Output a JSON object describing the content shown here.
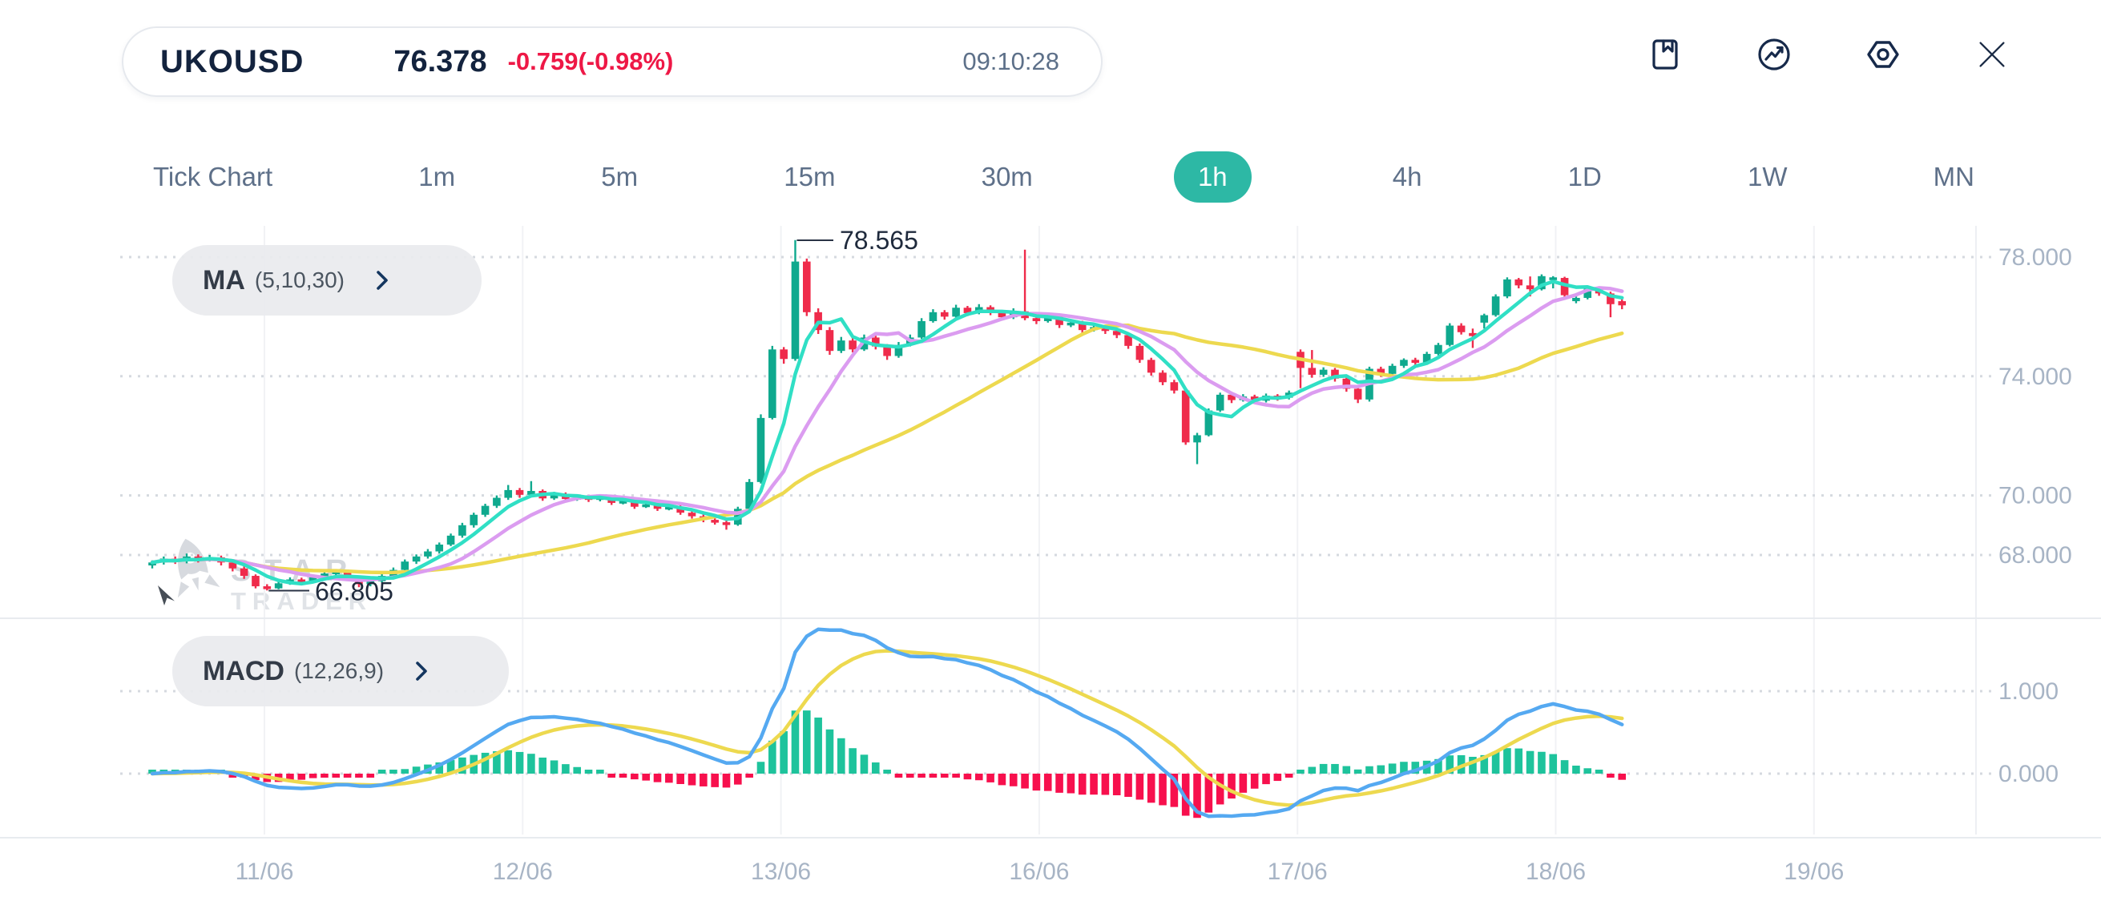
{
  "header": {
    "symbol": "UKOUSD",
    "price": "76.378",
    "change": "-0.759(-0.98%)",
    "time": "09:10:28",
    "icons": [
      "bookmark-icon",
      "performance-icon",
      "settings-icon",
      "close-icon"
    ]
  },
  "timeframes": {
    "items": [
      "Tick Chart",
      "1m",
      "5m",
      "15m",
      "30m",
      "1h",
      "4h",
      "1D",
      "1W",
      "MN"
    ],
    "active": "1h"
  },
  "indicators": {
    "ma": {
      "name": "MA",
      "params": "(5,10,30)"
    },
    "macd": {
      "name": "MACD",
      "params": "(12,26,9)"
    }
  },
  "watermark": {
    "line1": "STAR",
    "line2": "TRADER"
  },
  "colors": {
    "navy": "#13233e",
    "red": "#ee1846",
    "teal_active": "#2db8a5",
    "candle_up": "#0fa98e",
    "candle_down": "#ef2b4b",
    "ma5": "#30dfc5",
    "ma10": "#db9cf0",
    "ma30": "#edd94f",
    "macd_line": "#55a9f1",
    "signal_line": "#edd94f",
    "hist_up": "#1ec39c",
    "hist_down": "#f7104d",
    "grid_dotted": "#d5d9df",
    "grid_vertical": "#f1f2f5",
    "axis_label": "#a7b4c5",
    "annotation": "#1f2a3c",
    "separator": "#e8ebef"
  },
  "chart_data": {
    "type": "candlestick+macd",
    "timeframe": "1h",
    "x_labels": [
      "11/06",
      "12/06",
      "13/06",
      "16/06",
      "17/06",
      "18/06",
      "19/06"
    ],
    "price_ticks": {
      "values": [
        78,
        74,
        70,
        68
      ],
      "labels": [
        "78.000",
        "74.000",
        "70.000",
        "68.000"
      ]
    },
    "macd_ticks": {
      "values": [
        1,
        0
      ],
      "labels": [
        "1.000",
        "0.000"
      ]
    },
    "ma_periods": [
      5,
      10,
      30
    ],
    "macd_params": [
      12,
      26,
      9
    ],
    "annotations": {
      "high": {
        "value": 78.565,
        "label": "78.565",
        "candle": 56
      },
      "low": {
        "value": 66.805,
        "label": "66.805",
        "candle": 10
      }
    },
    "candles": [
      [
        67.65,
        67.82,
        67.55,
        67.75
      ],
      [
        67.75,
        67.95,
        67.68,
        67.88
      ],
      [
        67.88,
        67.95,
        67.7,
        67.8
      ],
      [
        67.8,
        68.05,
        67.72,
        67.95
      ],
      [
        67.95,
        68.02,
        67.75,
        67.85
      ],
      [
        67.85,
        68.0,
        67.78,
        67.92
      ],
      [
        67.92,
        67.98,
        67.65,
        67.75
      ],
      [
        67.75,
        67.82,
        67.45,
        67.55
      ],
      [
        67.55,
        67.62,
        67.2,
        67.3
      ],
      [
        67.3,
        67.35,
        66.88,
        66.95
      ],
      [
        66.95,
        67.02,
        66.81,
        66.88
      ],
      [
        66.88,
        67.12,
        66.85,
        67.05
      ],
      [
        67.05,
        67.25,
        67.0,
        67.18
      ],
      [
        67.18,
        67.24,
        67.05,
        67.12
      ],
      [
        67.12,
        67.32,
        67.08,
        67.25
      ],
      [
        67.25,
        67.45,
        67.2,
        67.38
      ],
      [
        67.38,
        67.52,
        67.3,
        67.45
      ],
      [
        67.45,
        67.5,
        67.15,
        67.22
      ],
      [
        67.22,
        67.28,
        66.92,
        67.02
      ],
      [
        67.02,
        67.22,
        66.95,
        67.12
      ],
      [
        67.12,
        67.38,
        67.08,
        67.3
      ],
      [
        67.3,
        67.58,
        67.25,
        67.5
      ],
      [
        67.5,
        67.85,
        67.45,
        67.78
      ],
      [
        67.78,
        68.02,
        67.7,
        67.95
      ],
      [
        67.95,
        68.2,
        67.88,
        68.12
      ],
      [
        68.12,
        68.42,
        68.05,
        68.35
      ],
      [
        68.35,
        68.72,
        68.3,
        68.65
      ],
      [
        68.65,
        69.08,
        68.58,
        69.0
      ],
      [
        69.0,
        69.42,
        68.92,
        69.35
      ],
      [
        69.35,
        69.72,
        69.28,
        69.65
      ],
      [
        69.65,
        70.0,
        69.58,
        69.92
      ],
      [
        69.92,
        70.35,
        69.85,
        70.18
      ],
      [
        70.18,
        70.25,
        69.92,
        70.02
      ],
      [
        70.02,
        70.48,
        69.95,
        70.15
      ],
      [
        70.15,
        70.2,
        69.82,
        69.9
      ],
      [
        69.9,
        70.12,
        69.85,
        70.05
      ],
      [
        70.05,
        70.1,
        69.8,
        69.88
      ],
      [
        69.88,
        70.02,
        69.82,
        69.95
      ],
      [
        69.95,
        70.0,
        69.78,
        69.85
      ],
      [
        69.85,
        70.02,
        69.8,
        69.95
      ],
      [
        69.95,
        70.0,
        69.68,
        69.75
      ],
      [
        69.75,
        69.9,
        69.7,
        69.82
      ],
      [
        69.82,
        69.88,
        69.55,
        69.62
      ],
      [
        69.62,
        69.78,
        69.58,
        69.7
      ],
      [
        69.7,
        69.75,
        69.48,
        69.55
      ],
      [
        69.55,
        69.7,
        69.5,
        69.62
      ],
      [
        69.62,
        69.68,
        69.35,
        69.42
      ],
      [
        69.42,
        69.5,
        69.22,
        69.3
      ],
      [
        69.3,
        69.38,
        69.1,
        69.18
      ],
      [
        69.18,
        69.25,
        69.02,
        69.1
      ],
      [
        69.1,
        69.15,
        68.85,
        69.02
      ],
      [
        69.02,
        69.62,
        68.98,
        69.55
      ],
      [
        69.55,
        70.55,
        69.5,
        70.45
      ],
      [
        70.45,
        72.72,
        70.4,
        72.6
      ],
      [
        72.6,
        75.02,
        72.55,
        74.9
      ],
      [
        74.9,
        74.98,
        74.42,
        74.58
      ],
      [
        74.58,
        78.57,
        74.52,
        77.85
      ],
      [
        77.85,
        77.95,
        76.02,
        76.15
      ],
      [
        76.15,
        76.28,
        75.42,
        75.55
      ],
      [
        75.55,
        75.65,
        74.72,
        74.85
      ],
      [
        74.85,
        75.32,
        74.78,
        75.2
      ],
      [
        75.2,
        75.28,
        74.8,
        74.9
      ],
      [
        74.9,
        75.4,
        74.85,
        75.3
      ],
      [
        75.3,
        75.36,
        74.9,
        75.0
      ],
      [
        75.0,
        75.08,
        74.55,
        74.68
      ],
      [
        74.68,
        75.15,
        74.62,
        75.05
      ],
      [
        75.05,
        75.4,
        75.0,
        75.3
      ],
      [
        75.3,
        75.95,
        75.25,
        75.85
      ],
      [
        75.85,
        76.25,
        75.8,
        76.15
      ],
      [
        76.15,
        76.22,
        75.9,
        76.0
      ],
      [
        76.0,
        76.4,
        75.95,
        76.3
      ],
      [
        76.3,
        76.36,
        76.02,
        76.12
      ],
      [
        76.12,
        76.42,
        76.08,
        76.32
      ],
      [
        76.32,
        76.38,
        76.05,
        76.15
      ],
      [
        76.15,
        76.22,
        75.88,
        75.98
      ],
      [
        75.98,
        76.28,
        75.92,
        76.18
      ],
      [
        76.18,
        78.25,
        75.88,
        75.95
      ],
      [
        75.95,
        76.05,
        75.75,
        75.85
      ],
      [
        75.85,
        76.12,
        75.8,
        76.02
      ],
      [
        76.02,
        76.08,
        75.62,
        75.72
      ],
      [
        75.72,
        75.9,
        75.65,
        75.8
      ],
      [
        75.8,
        75.86,
        75.45,
        75.55
      ],
      [
        75.55,
        75.75,
        75.5,
        75.65
      ],
      [
        75.65,
        75.72,
        75.42,
        75.52
      ],
      [
        75.52,
        75.58,
        75.28,
        75.38
      ],
      [
        75.38,
        75.45,
        74.92,
        75.02
      ],
      [
        75.02,
        75.1,
        74.45,
        74.55
      ],
      [
        74.55,
        74.62,
        74.02,
        74.12
      ],
      [
        74.12,
        74.2,
        73.7,
        73.8
      ],
      [
        73.8,
        73.88,
        73.42,
        73.52
      ],
      [
        73.52,
        73.58,
        71.7,
        71.78
      ],
      [
        71.78,
        72.1,
        71.05,
        72.02
      ],
      [
        72.02,
        72.92,
        71.98,
        72.85
      ],
      [
        72.85,
        73.45,
        72.8,
        73.38
      ],
      [
        73.38,
        73.44,
        73.1,
        73.2
      ],
      [
        73.2,
        73.4,
        73.15,
        73.32
      ],
      [
        73.32,
        73.38,
        73.08,
        73.18
      ],
      [
        73.18,
        73.42,
        73.12,
        73.35
      ],
      [
        73.35,
        73.4,
        73.18,
        73.28
      ],
      [
        73.28,
        73.52,
        73.22,
        73.45
      ],
      [
        74.82,
        74.9,
        73.6,
        74.28
      ],
      [
        74.28,
        74.88,
        73.95,
        74.05
      ],
      [
        74.05,
        74.3,
        73.98,
        74.22
      ],
      [
        74.22,
        74.28,
        73.82,
        73.92
      ],
      [
        73.92,
        74.0,
        73.48,
        73.58
      ],
      [
        73.58,
        73.65,
        73.1,
        73.22
      ],
      [
        73.22,
        74.32,
        73.15,
        74.25
      ],
      [
        74.25,
        74.32,
        73.98,
        74.08
      ],
      [
        74.08,
        74.42,
        74.02,
        74.35
      ],
      [
        74.35,
        74.6,
        74.28,
        74.55
      ],
      [
        74.55,
        74.62,
        74.35,
        74.45
      ],
      [
        74.45,
        74.82,
        74.4,
        74.75
      ],
      [
        74.75,
        75.12,
        74.7,
        75.05
      ],
      [
        75.05,
        75.78,
        75.0,
        75.7
      ],
      [
        75.7,
        75.78,
        75.4,
        75.48
      ],
      [
        75.45,
        75.6,
        74.95,
        75.35
      ],
      [
        75.8,
        76.1,
        75.6,
        76.05
      ],
      [
        76.05,
        76.75,
        76.0,
        76.68
      ],
      [
        76.68,
        77.32,
        76.62,
        77.25
      ],
      [
        77.25,
        77.3,
        76.95,
        77.05
      ],
      [
        77.05,
        77.35,
        76.68,
        76.92
      ],
      [
        76.92,
        77.42,
        76.88,
        77.36
      ],
      [
        77.28,
        77.36,
        76.95,
        77.32
      ],
      [
        77.3,
        77.34,
        76.62,
        76.72
      ],
      [
        76.52,
        76.68,
        76.45,
        76.63
      ],
      [
        76.63,
        77.02,
        76.58,
        76.96
      ],
      [
        76.96,
        77.02,
        76.7,
        76.78
      ],
      [
        76.78,
        76.84,
        75.98,
        76.42
      ],
      [
        76.52,
        76.58,
        76.25,
        76.38
      ]
    ]
  }
}
